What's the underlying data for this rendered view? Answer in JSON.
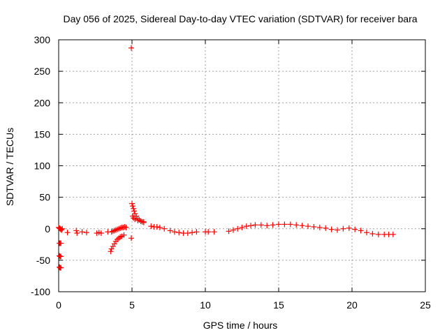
{
  "chart_data": {
    "type": "scatter",
    "title": "Day 056 of 2025, Sidereal Day-to-day VTEC variation (SDTVAR) for receiver bara",
    "xlabel": "GPS time / hours",
    "ylabel": "SDTVAR / TECUs",
    "xlim": [
      0,
      25
    ],
    "ylim": [
      -100,
      300
    ],
    "xticks": [
      "0",
      "5",
      "10",
      "15",
      "20",
      "25"
    ],
    "yticks": [
      "-100",
      "-50",
      "0",
      "50",
      "100",
      "150",
      "200",
      "250",
      "300"
    ],
    "xtick_values": [
      0,
      5,
      10,
      15,
      20,
      25
    ],
    "ytick_values": [
      -100,
      -50,
      0,
      50,
      100,
      150,
      200,
      250,
      300
    ],
    "grid": true,
    "marker": "+",
    "color": "#ff0000",
    "series": [
      {
        "name": "SDTVAR",
        "x": [
          0.0,
          0.05,
          0.1,
          0.15,
          0.2,
          0.25,
          0.05,
          0.1,
          0.15,
          0.05,
          0.1,
          0.15,
          0.05,
          0.1,
          0.15,
          0.6,
          1.2,
          1.25,
          1.6,
          1.9,
          2.6,
          2.75,
          2.9,
          3.35,
          3.55,
          3.6,
          3.7,
          3.8,
          3.9,
          4.0,
          4.1,
          4.2,
          4.3,
          4.45,
          3.6,
          3.7,
          3.8,
          3.9,
          4.0,
          4.1,
          4.2,
          4.3,
          4.4,
          4.5,
          4.6,
          4.95,
          4.95,
          5.0,
          5.05,
          5.1,
          5.15,
          5.2,
          5.3,
          5.4,
          5.5,
          5.6,
          5.7,
          5.8,
          5.05,
          5.1,
          5.2,
          5.4,
          5.6,
          5.8,
          6.3,
          6.5,
          6.7,
          6.9,
          7.2,
          7.6,
          7.9,
          8.2,
          8.5,
          8.8,
          9.1,
          9.4,
          10.0,
          10.2,
          10.6,
          11.6,
          11.9,
          12.2,
          12.5,
          12.8,
          13.1,
          13.4,
          13.8,
          14.2,
          14.6,
          15.0,
          15.4,
          15.8,
          16.2,
          16.6,
          17.0,
          17.4,
          17.8,
          18.2,
          18.6,
          19.0,
          19.4,
          19.8,
          20.2,
          20.6,
          21.0,
          21.4,
          21.8,
          22.2,
          22.5,
          22.8
        ],
        "y": [
          2,
          1,
          0,
          -1,
          -2,
          0,
          -23,
          -23,
          -23,
          -43,
          -44,
          -44,
          -61,
          -62,
          -62,
          -6,
          -3,
          -7,
          -5,
          -6,
          -7,
          -6,
          -7,
          -5,
          -36,
          -32,
          -28,
          -24,
          -20,
          -17,
          -15,
          -13,
          -12,
          -10,
          -5,
          -4,
          -3,
          -2,
          -1,
          0,
          1,
          2,
          2,
          3,
          2,
          -15,
          287,
          40,
          36,
          32,
          28,
          24,
          20,
          16,
          14,
          12,
          11,
          10,
          20,
          17,
          15,
          13,
          12,
          11,
          4,
          3,
          3,
          2,
          0,
          -3,
          -5,
          -6,
          -7,
          -7,
          -6,
          -5,
          -5,
          -5,
          -5,
          -4,
          -2,
          0,
          2,
          4,
          5,
          6,
          6,
          5,
          6,
          7,
          7,
          7,
          6,
          5,
          4,
          3,
          2,
          1,
          -1,
          -2,
          0,
          1,
          -1,
          -3,
          -6,
          -8,
          -9,
          -9,
          -9,
          -9
        ]
      }
    ]
  }
}
